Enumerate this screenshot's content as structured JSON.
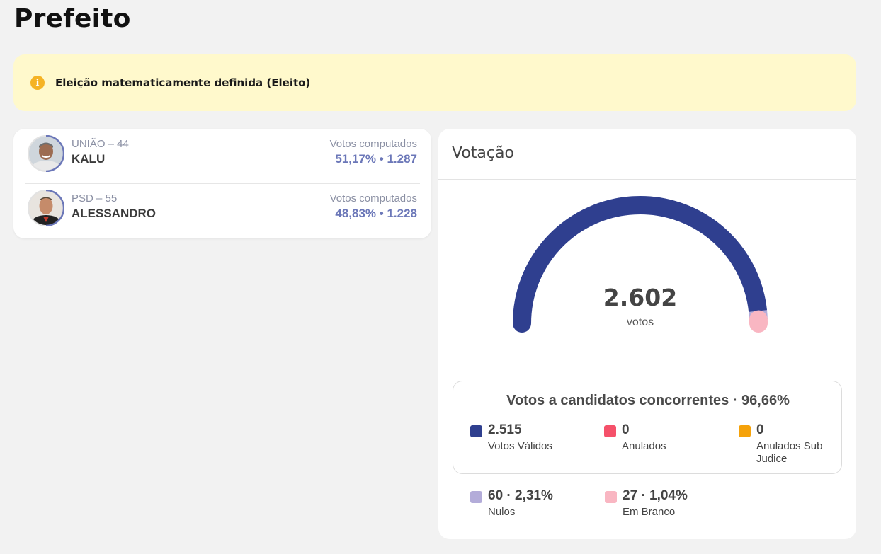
{
  "page": {
    "title": "Prefeito"
  },
  "alert": {
    "icon": "info-icon",
    "text": "Eleição matematicamente definida (Eleito)",
    "color": "#fff9cc"
  },
  "candidates": [
    {
      "party": "UNIÃO – 44",
      "name": "KALU",
      "votes_label": "Votos computados",
      "votes": "51,17%  •  1.287",
      "percent": 51.17
    },
    {
      "party": "PSD – 55",
      "name": "ALESSANDRO",
      "votes_label": "Votos computados",
      "votes": "48,83%  •  1.228",
      "percent": 48.83
    }
  ],
  "votacao": {
    "title": "Votação",
    "total": "2.602",
    "total_label": "votos",
    "summary_title": "Votos a candidatos concorrentes · 96,66%",
    "legend": [
      {
        "value": "2.515",
        "label": "Votos Válidos",
        "color": "#2f3f8f"
      },
      {
        "value": "0",
        "label": "Anulados",
        "color": "#f5516a"
      },
      {
        "value": "0",
        "label": "Anulados Sub Judice",
        "color": "#f5a20a"
      },
      {
        "value": "60 · 2,31%",
        "label": "Nulos",
        "color": "#b3acd9"
      },
      {
        "value": "27 · 1,04%",
        "label": "Em Branco",
        "color": "#f9b6c2"
      }
    ]
  },
  "chart_data": {
    "type": "pie",
    "categories": [
      "Votos Válidos",
      "Anulados",
      "Anulados Sub Judice",
      "Nulos",
      "Em Branco"
    ],
    "values": [
      2515,
      0,
      0,
      60,
      27
    ],
    "title": "",
    "total": 2602
  }
}
